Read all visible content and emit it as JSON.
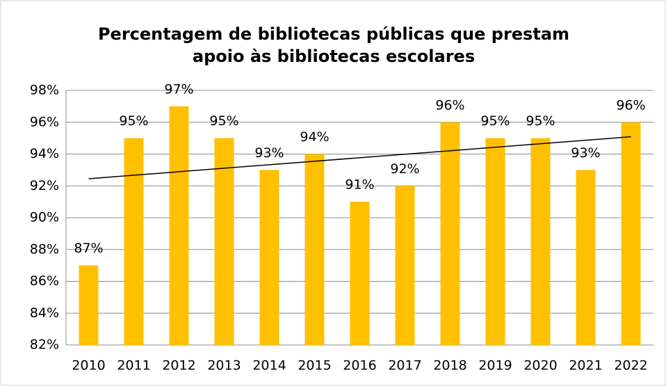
{
  "chart_data": {
    "type": "bar",
    "title": [
      "Percentagem de bibliotecas públicas que prestam",
      "apoio às bibliotecas escolares"
    ],
    "categories": [
      "2010",
      "2011",
      "2012",
      "2013",
      "2014",
      "2015",
      "2016",
      "2017",
      "2018",
      "2019",
      "2020",
      "2021",
      "2022"
    ],
    "values": [
      87,
      95,
      97,
      95,
      93,
      94,
      91,
      92,
      96,
      95,
      95,
      93,
      96
    ],
    "value_labels": [
      "87%",
      "95%",
      "97%",
      "95%",
      "93%",
      "94%",
      "91%",
      "92%",
      "96%",
      "95%",
      "95%",
      "93%",
      "96%"
    ],
    "color": "#ffc000",
    "ylim": [
      82,
      98
    ],
    "yticks": [
      {
        "value": 82,
        "label": "82%"
      },
      {
        "value": 84,
        "label": "84%"
      },
      {
        "value": 86,
        "label": "86%"
      },
      {
        "value": 88,
        "label": "88%"
      },
      {
        "value": 90,
        "label": "90%"
      },
      {
        "value": 92,
        "label": "92%"
      },
      {
        "value": 94,
        "label": "94%"
      },
      {
        "value": 96,
        "label": "96%"
      },
      {
        "value": 98,
        "label": "98%"
      }
    ],
    "grid": true,
    "trendline": true
  }
}
